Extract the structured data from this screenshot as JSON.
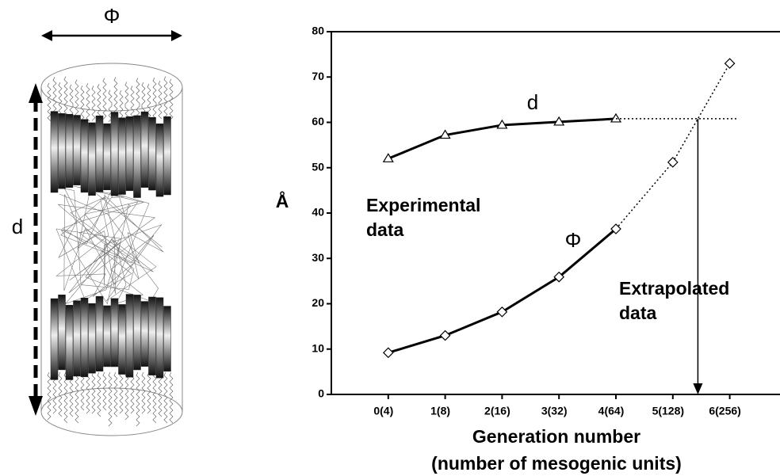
{
  "diagram": {
    "phi_label": "Φ",
    "d_label": "d"
  },
  "chart_data": {
    "type": "line",
    "categories": [
      "0(4)",
      "1(8)",
      "2(16)",
      "3(32)",
      "4(64)",
      "5(128)",
      "6(256)"
    ],
    "series": [
      {
        "name": "d",
        "marker": "triangle",
        "color": "#000000",
        "values": [
          52,
          57.2,
          59.4,
          60.1,
          60.8,
          null,
          null
        ]
      },
      {
        "name": "Φ",
        "marker": "diamond",
        "color": "#000000",
        "values": [
          9.2,
          13,
          18.2,
          25.9,
          36.5,
          51.2,
          73
        ]
      }
    ],
    "dashed_from": "4(64)",
    "ylabel": "Å",
    "xlabel": [
      "Generation number",
      "(number of mesogenic units)"
    ],
    "annotations": [
      {
        "lines": [
          "Experimental",
          "data"
        ]
      },
      {
        "lines": [
          "Extrapolated",
          "data"
        ]
      }
    ],
    "ylim": [
      0,
      80
    ],
    "yticks": [
      0,
      10,
      20,
      30,
      40,
      50,
      60,
      70,
      80
    ]
  }
}
